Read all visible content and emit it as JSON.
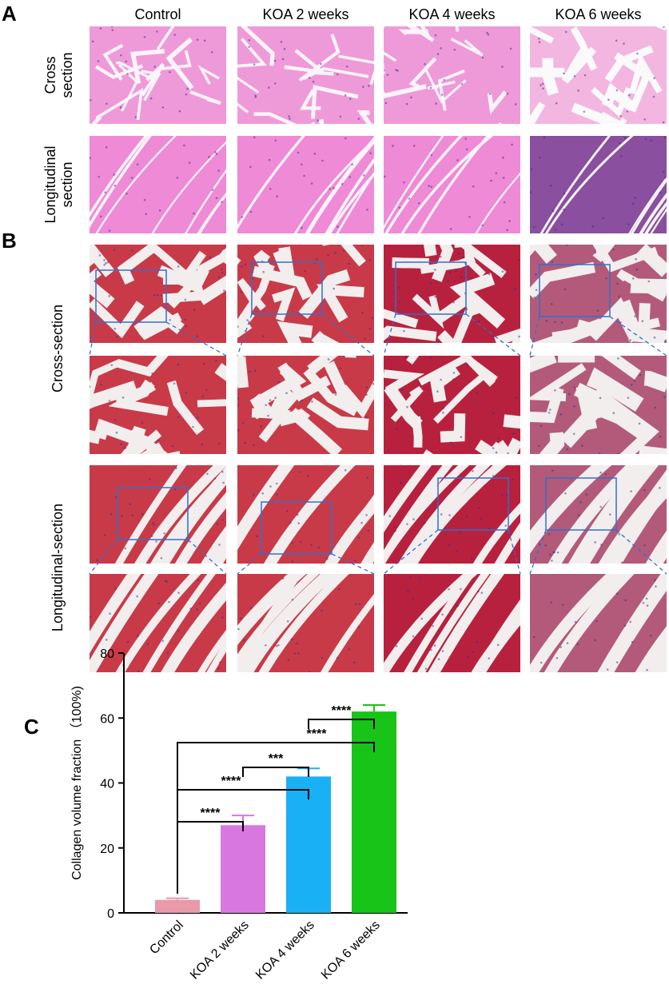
{
  "panel_labels": [
    "A",
    "B",
    "C"
  ],
  "columns": [
    "Control",
    "KOA 2 weeks",
    "KOA 4 weeks",
    "KOA 6 weeks"
  ],
  "panel_a_rows": [
    [
      "Cross",
      "section"
    ],
    [
      "Longitudinal",
      "section"
    ]
  ],
  "panel_b_rows": [
    "Cross-section",
    "Longitudinal-section"
  ],
  "chart_data": {
    "type": "bar",
    "ylabel": "Collagen volume fraction （100%)",
    "categories": [
      "Control",
      "KOA 2 weeks",
      "KOA 4 weeks",
      "KOA 6 weeks"
    ],
    "values": [
      4,
      27,
      42,
      62
    ],
    "errors": [
      0.5,
      3,
      2.5,
      2
    ],
    "colors": [
      "#e89aab",
      "#d977e0",
      "#1ab0f5",
      "#17c417"
    ],
    "ylim": [
      0,
      80
    ],
    "yticks": [
      0,
      20,
      40,
      60,
      80
    ],
    "annotations": [
      "****",
      "****",
      "***",
      "****",
      "****"
    ]
  }
}
